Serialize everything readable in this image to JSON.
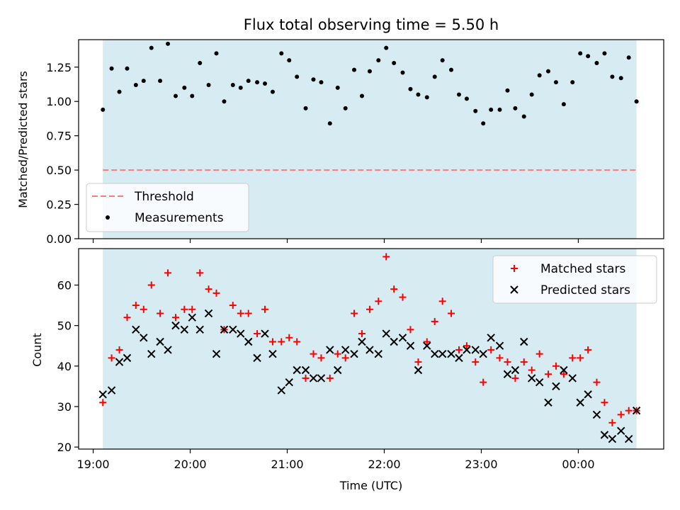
{
  "chart_data": [
    {
      "type": "scatter",
      "title": "Flux total observing time = 5.50 h",
      "xlabel": "",
      "ylabel": "Matched/Predicted stars",
      "ylim": [
        0,
        1.45
      ],
      "yticks": [
        "0.00",
        "0.25",
        "0.50",
        "0.75",
        "1.00",
        "1.25"
      ],
      "ytick_values": [
        0,
        0.25,
        0.5,
        0.75,
        1.0,
        1.25
      ],
      "observing_window": {
        "start": 19.1,
        "end": 24.6,
        "color": "#add8e6"
      },
      "threshold": {
        "name": "Threshold",
        "value": 0.5,
        "color": "#f08080"
      },
      "legend": {
        "placement": "lower-left",
        "entries": [
          "Threshold",
          "Measurements"
        ]
      },
      "series": [
        {
          "name": "Measurements",
          "color": "#000000",
          "marker": "dot",
          "x": [
            19.1,
            19.19,
            19.27,
            19.35,
            19.44,
            19.52,
            19.6,
            19.69,
            19.77,
            19.85,
            19.94,
            20.02,
            20.1,
            20.19,
            20.27,
            20.35,
            20.44,
            20.52,
            20.6,
            20.69,
            20.77,
            20.85,
            20.94,
            21.02,
            21.1,
            21.19,
            21.27,
            21.35,
            21.44,
            21.52,
            21.6,
            21.69,
            21.77,
            21.85,
            21.94,
            22.02,
            22.1,
            22.19,
            22.27,
            22.35,
            22.44,
            22.52,
            22.6,
            22.69,
            22.77,
            22.85,
            22.94,
            23.02,
            23.1,
            23.19,
            23.27,
            23.35,
            23.44,
            23.52,
            23.6,
            23.69,
            23.77,
            23.85,
            23.94,
            24.02,
            24.1,
            24.19,
            24.27,
            24.35,
            24.44,
            24.52,
            24.6
          ],
          "y": [
            0.94,
            1.24,
            1.07,
            1.24,
            1.12,
            1.15,
            1.39,
            1.15,
            1.42,
            1.04,
            1.1,
            1.04,
            1.28,
            1.12,
            1.35,
            1.0,
            1.12,
            1.1,
            1.15,
            1.14,
            1.13,
            1.07,
            1.35,
            1.3,
            1.18,
            0.95,
            1.16,
            1.14,
            0.84,
            1.1,
            0.95,
            1.23,
            1.04,
            1.22,
            1.3,
            1.39,
            1.28,
            1.21,
            1.09,
            1.05,
            1.03,
            1.18,
            1.3,
            1.23,
            1.05,
            1.02,
            0.93,
            0.84,
            0.94,
            0.94,
            1.08,
            0.95,
            0.89,
            1.05,
            1.19,
            1.22,
            1.14,
            0.98,
            1.14,
            1.35,
            1.33,
            1.28,
            1.35,
            1.18,
            1.17,
            1.32,
            1.0
          ]
        }
      ]
    },
    {
      "type": "scatter",
      "title": "",
      "xlabel": "Time (UTC)",
      "ylabel": "Count",
      "ylim": [
        19.5,
        69
      ],
      "yticks": [
        "20",
        "30",
        "40",
        "50",
        "60"
      ],
      "ytick_values": [
        20,
        30,
        40,
        50,
        60
      ],
      "xlim": [
        18.85,
        24.88
      ],
      "xticks": [
        "19:00",
        "20:00",
        "21:00",
        "22:00",
        "23:00",
        "00:00"
      ],
      "xtick_values": [
        19,
        20,
        21,
        22,
        23,
        24
      ],
      "observing_window": {
        "start": 19.1,
        "end": 24.6,
        "color": "#add8e6"
      },
      "legend": {
        "placement": "top-right",
        "entries": [
          "Matched stars",
          "Predicted stars"
        ]
      },
      "series": [
        {
          "name": "Matched stars",
          "color": "#ff0000",
          "marker": "plus",
          "x": [
            19.1,
            19.19,
            19.27,
            19.35,
            19.44,
            19.52,
            19.6,
            19.69,
            19.77,
            19.85,
            19.94,
            20.02,
            20.1,
            20.19,
            20.27,
            20.35,
            20.44,
            20.52,
            20.6,
            20.69,
            20.77,
            20.85,
            20.94,
            21.02,
            21.1,
            21.19,
            21.27,
            21.35,
            21.44,
            21.52,
            21.6,
            21.69,
            21.77,
            21.85,
            21.94,
            22.02,
            22.1,
            22.19,
            22.27,
            22.35,
            22.44,
            22.52,
            22.6,
            22.69,
            22.77,
            22.85,
            22.94,
            23.02,
            23.1,
            23.19,
            23.27,
            23.35,
            23.44,
            23.52,
            23.6,
            23.69,
            23.77,
            23.85,
            23.94,
            24.02,
            24.1,
            24.19,
            24.27,
            24.35,
            24.44,
            24.52,
            24.6
          ],
          "y": [
            31,
            42,
            44,
            52,
            55,
            54,
            60,
            53,
            63,
            52,
            54,
            54,
            63,
            59,
            58,
            49,
            55,
            53,
            53,
            48,
            54,
            46,
            46,
            47,
            46,
            37,
            43,
            42,
            37,
            43,
            42,
            53,
            48,
            54,
            56,
            67,
            59,
            57,
            49,
            41,
            46,
            51,
            56,
            53,
            44,
            45,
            41,
            36,
            44,
            42,
            41,
            37,
            41,
            39,
            43,
            38,
            40,
            38,
            42,
            42,
            44,
            36,
            31,
            26,
            28,
            29,
            29
          ]
        },
        {
          "name": "Predicted stars",
          "color": "#000000",
          "marker": "x",
          "x": [
            19.1,
            19.19,
            19.27,
            19.35,
            19.44,
            19.52,
            19.6,
            19.69,
            19.77,
            19.85,
            19.94,
            20.02,
            20.1,
            20.19,
            20.27,
            20.35,
            20.44,
            20.52,
            20.6,
            20.69,
            20.77,
            20.85,
            20.94,
            21.02,
            21.1,
            21.19,
            21.27,
            21.35,
            21.44,
            21.52,
            21.6,
            21.69,
            21.77,
            21.85,
            21.94,
            22.02,
            22.1,
            22.19,
            22.27,
            22.35,
            22.44,
            22.52,
            22.6,
            22.69,
            22.77,
            22.85,
            22.94,
            23.02,
            23.1,
            23.19,
            23.27,
            23.35,
            23.44,
            23.52,
            23.6,
            23.69,
            23.77,
            23.85,
            23.94,
            24.02,
            24.1,
            24.19,
            24.27,
            24.35,
            24.44,
            24.52,
            24.6
          ],
          "y": [
            33,
            34,
            41,
            42,
            49,
            47,
            43,
            46,
            44,
            50,
            49,
            52,
            49,
            53,
            43,
            49,
            49,
            48,
            46,
            42,
            48,
            43,
            34,
            36,
            39,
            39,
            37,
            37,
            44,
            39,
            44,
            43,
            46,
            44,
            43,
            48,
            46,
            47,
            45,
            39,
            45,
            43,
            43,
            43,
            42,
            44,
            44,
            43,
            47,
            45,
            38,
            39,
            46,
            37,
            36,
            31,
            35,
            39,
            37,
            31,
            33,
            28,
            23,
            22,
            24,
            22,
            29
          ]
        }
      ]
    }
  ]
}
